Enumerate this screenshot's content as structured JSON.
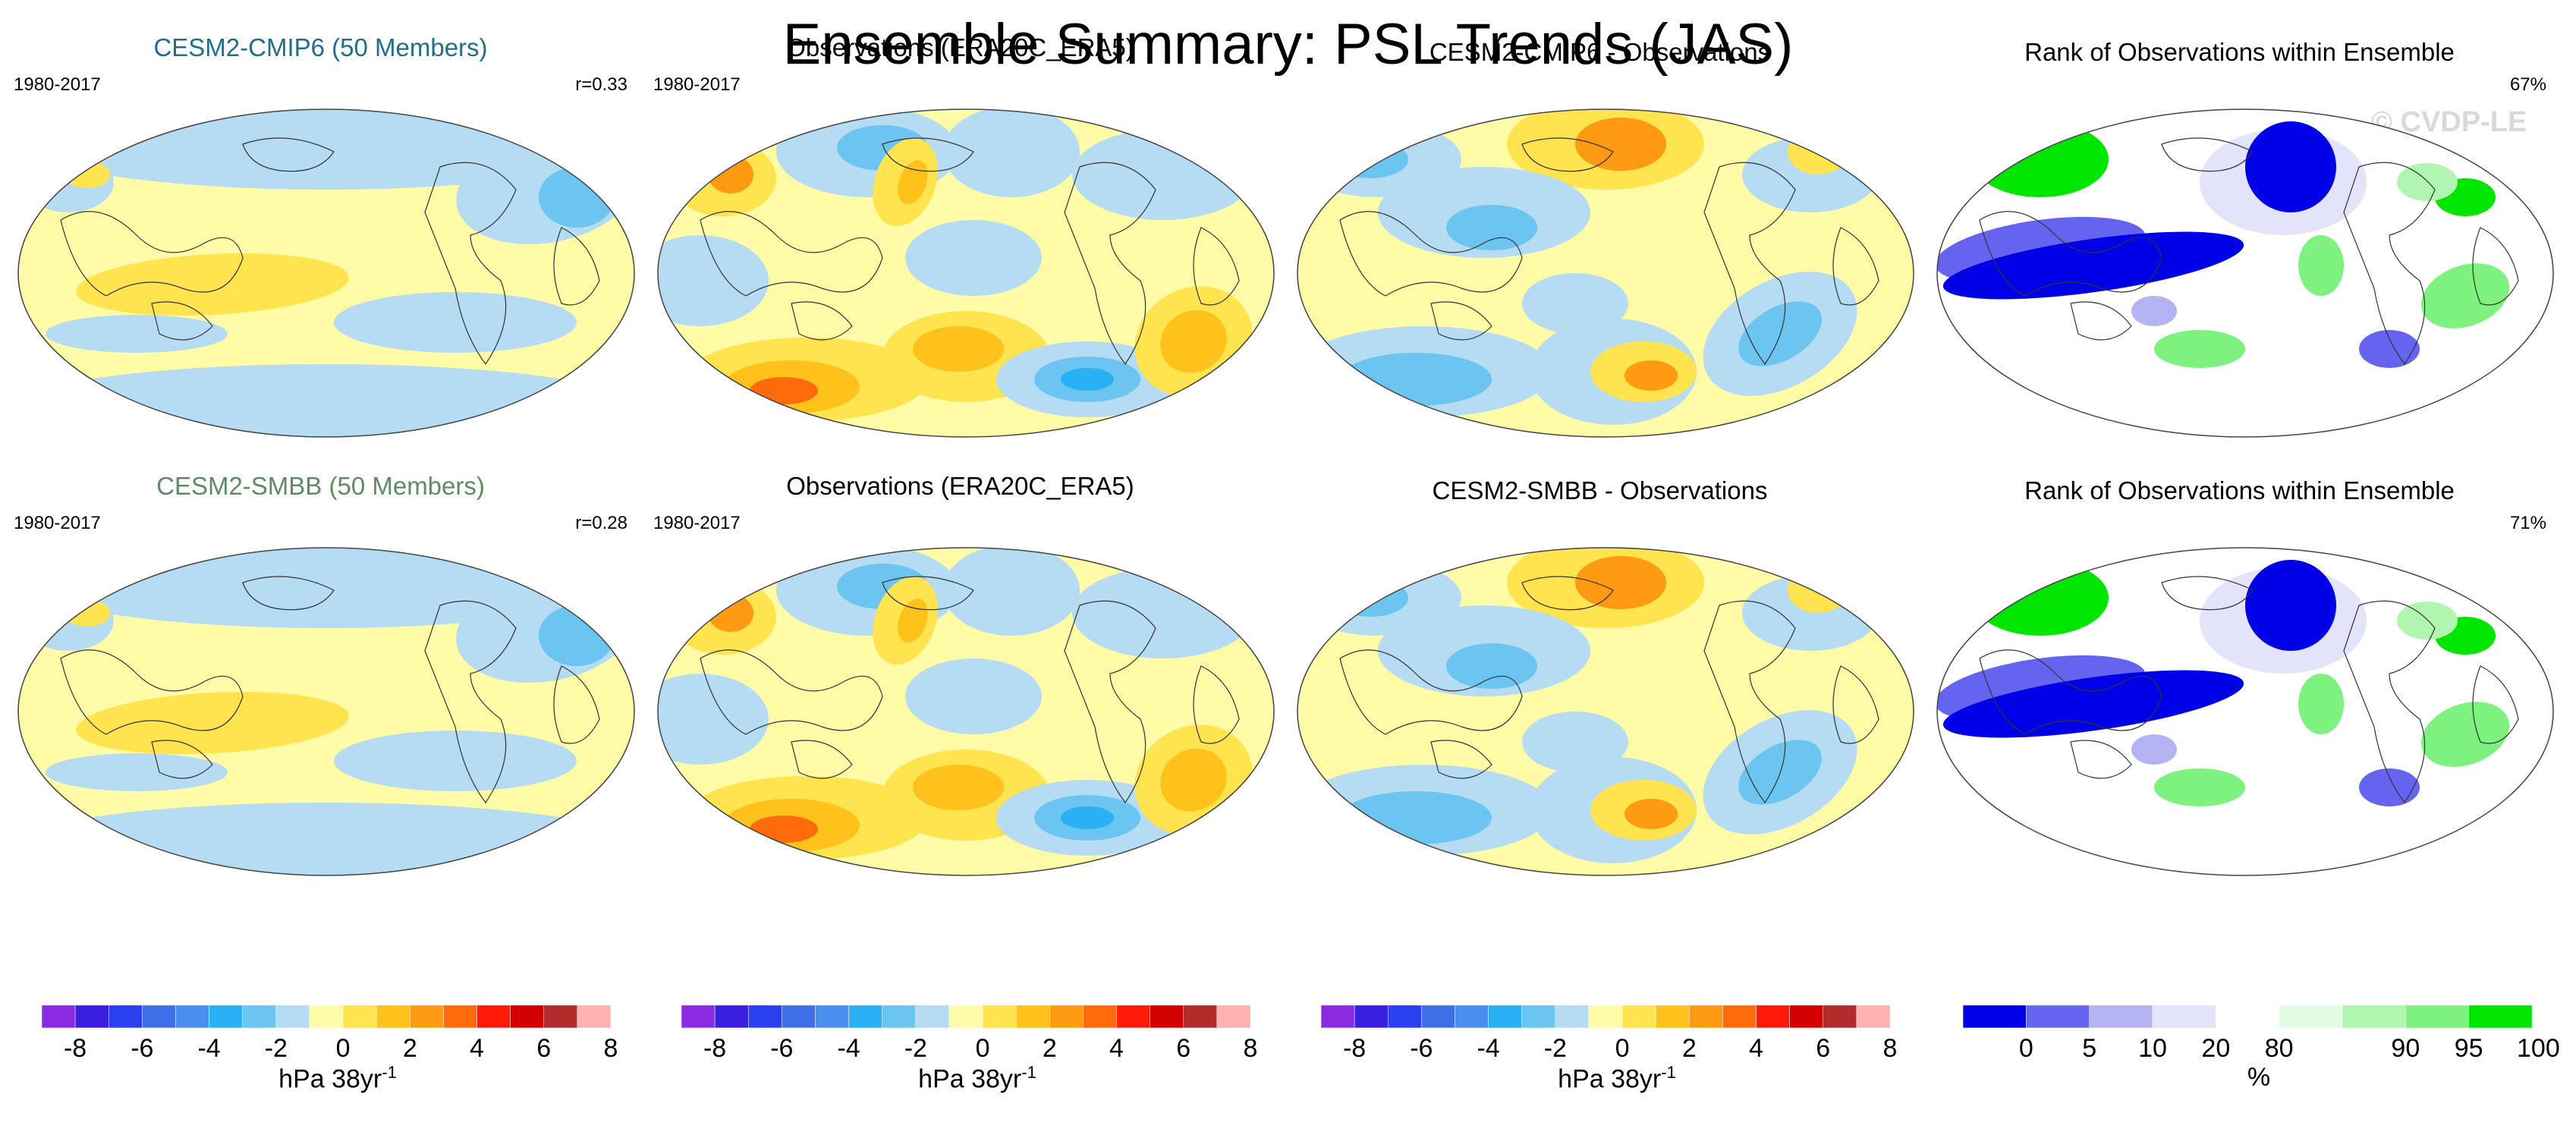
{
  "title": "Ensemble Summary: PSL Trends (JAS)",
  "watermark": "© CVDP-LE",
  "colors": {
    "trend_scale": [
      "#8a2be2",
      "#3a1fe0",
      "#2a3ff0",
      "#3f6fe8",
      "#4a8ef0",
      "#29b0f5",
      "#6cc4f0",
      "#b5dcf2",
      "#fffba6",
      "#ffe44f",
      "#ffc21a",
      "#ff9a12",
      "#ff6a0a",
      "#ff1a0a",
      "#d40000",
      "#b52a2a",
      "#ffb0b0"
    ],
    "rank_scale": [
      "#0000e6",
      "#6464f0",
      "#b4b4f5",
      "#e3e3fa",
      "#ffffff",
      "#e3fbe3",
      "#b0f5b0",
      "#7ef27e",
      "#00e600"
    ],
    "cmip6_title": "#1f6f8b",
    "smbb_title": "#5e8c62"
  },
  "panels": [
    {
      "title": "CESM2-CMIP6 (50 Members)",
      "left": "1980-2017",
      "right": "r=0.33",
      "style": "ens"
    },
    {
      "title": "Observations (ERA20C_ERA5)",
      "left": "1980-2017",
      "right": "",
      "style": "obs"
    },
    {
      "title": "CESM2-CMIP6 - Observations",
      "left": "",
      "right": "",
      "style": "diff"
    },
    {
      "title": "Rank of Observations within Ensemble",
      "left": "",
      "right": "67%",
      "style": "rank"
    },
    {
      "title": "CESM2-SMBB (50 Members)",
      "left": "1980-2017",
      "right": "r=0.28",
      "style": "ens"
    },
    {
      "title": "Observations (ERA20C_ERA5)",
      "left": "1980-2017",
      "right": "",
      "style": "obs"
    },
    {
      "title": "CESM2-SMBB - Observations",
      "left": "",
      "right": "",
      "style": "diff"
    },
    {
      "title": "Rank of Observations within Ensemble",
      "left": "",
      "right": "71%",
      "style": "rank"
    }
  ],
  "colorbars": [
    {
      "labels": [
        "-8",
        "-6",
        "-4",
        "-2",
        "0",
        "2",
        "4",
        "6",
        "8"
      ],
      "unit": "hPa 38yr",
      "unit_sup": "-1"
    },
    {
      "labels": [
        "-8",
        "-6",
        "-4",
        "-2",
        "0",
        "2",
        "4",
        "6",
        "8"
      ],
      "unit": "hPa 38yr",
      "unit_sup": "-1"
    },
    {
      "labels": [
        "-8",
        "-6",
        "-4",
        "-2",
        "0",
        "2",
        "4",
        "6",
        "8"
      ],
      "unit": "hPa 38yr",
      "unit_sup": "-1"
    },
    {
      "labels": [
        "0",
        "5",
        "10",
        "20",
        "80",
        "90",
        "95",
        "100"
      ],
      "unit": "%",
      "unit_sup": ""
    }
  ]
}
